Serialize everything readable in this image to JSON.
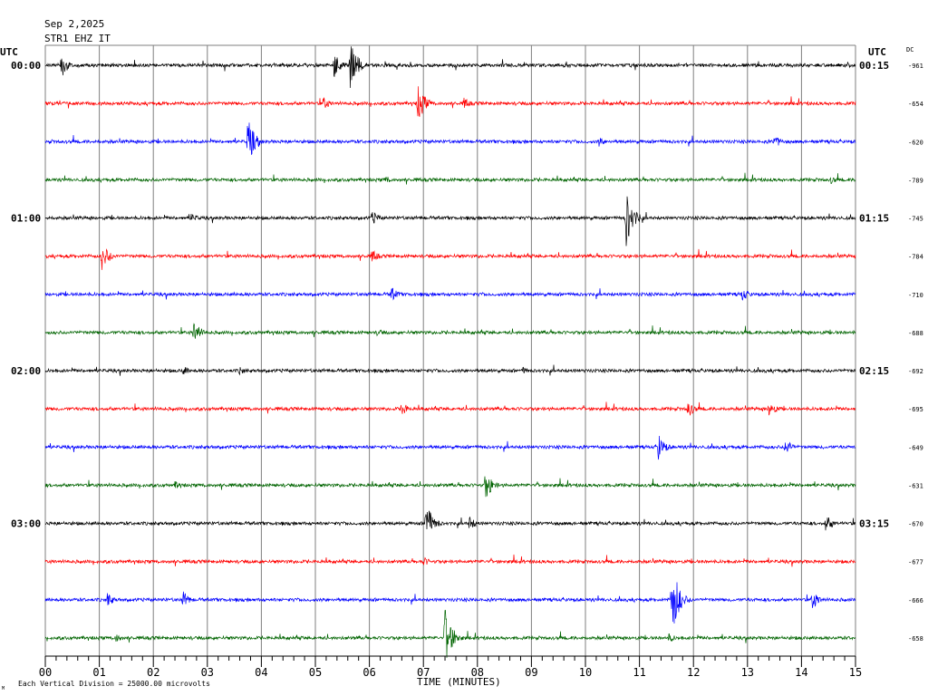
{
  "header": {
    "date": "Sep 2,2025",
    "station": "STR1 EHZ IT",
    "left_utc": "UTC",
    "right_utc": "UTC",
    "dc_label": "DC"
  },
  "footer": {
    "xlabel": "TIME (MINUTES)",
    "scale_note": "Each Vertical Division = 25000.00 microvolts",
    "corner_mark": "M"
  },
  "chart_data": {
    "type": "line",
    "title": "Sep 2,2025",
    "subtitle": "STR1 EHZ IT",
    "xlabel": "TIME (MINUTES)",
    "xlim": [
      0,
      15
    ],
    "x_ticks": [
      "00",
      "01",
      "02",
      "03",
      "04",
      "05",
      "06",
      "07",
      "08",
      "09",
      "10",
      "11",
      "12",
      "13",
      "14",
      "15"
    ],
    "row_colors": [
      "#000000",
      "#ff0000",
      "#0000ff",
      "#006400"
    ],
    "grid": true,
    "rows": [
      {
        "left_label": "00:00",
        "right_label": "00:15",
        "dc": "-961",
        "events": [
          {
            "t": 0.3,
            "amp": 14
          },
          {
            "t": 5.35,
            "amp": 16
          },
          {
            "t": 5.65,
            "amp": 30
          }
        ]
      },
      {
        "left_label": "",
        "right_label": "",
        "dc": "-654",
        "events": [
          {
            "t": 5.15,
            "amp": 8
          },
          {
            "t": 6.9,
            "amp": 22
          },
          {
            "t": 7.75,
            "amp": 7
          }
        ]
      },
      {
        "left_label": "",
        "right_label": "",
        "dc": "-620",
        "events": [
          {
            "t": 3.75,
            "amp": 26
          },
          {
            "t": 10.25,
            "amp": 6
          },
          {
            "t": 13.5,
            "amp": 8
          }
        ]
      },
      {
        "left_label": "",
        "right_label": "",
        "dc": "-789",
        "events": [
          {
            "t": 6.3,
            "amp": 5
          },
          {
            "t": 14.55,
            "amp": 5
          }
        ]
      },
      {
        "left_label": "01:00",
        "right_label": "01:15",
        "dc": "-745",
        "events": [
          {
            "t": 2.7,
            "amp": 6
          },
          {
            "t": 6.05,
            "amp": 9
          },
          {
            "t": 10.75,
            "amp": 34
          }
        ]
      },
      {
        "left_label": "",
        "right_label": "",
        "dc": "-784",
        "events": [
          {
            "t": 1.05,
            "amp": 17
          },
          {
            "t": 6.05,
            "amp": 8
          }
        ]
      },
      {
        "left_label": "",
        "right_label": "",
        "dc": "-710",
        "events": [
          {
            "t": 6.4,
            "amp": 9
          },
          {
            "t": 12.9,
            "amp": 8
          }
        ]
      },
      {
        "left_label": "",
        "right_label": "",
        "dc": "-688",
        "events": [
          {
            "t": 2.75,
            "amp": 15
          },
          {
            "t": 6.15,
            "amp": 5
          }
        ]
      },
      {
        "left_label": "02:00",
        "right_label": "02:15",
        "dc": "-692",
        "events": [
          {
            "t": 2.55,
            "amp": 6
          },
          {
            "t": 3.6,
            "amp": 5
          },
          {
            "t": 8.85,
            "amp": 5
          }
        ]
      },
      {
        "left_label": "",
        "right_label": "",
        "dc": "-695",
        "events": [
          {
            "t": 6.6,
            "amp": 9
          },
          {
            "t": 11.9,
            "amp": 10
          },
          {
            "t": 13.4,
            "amp": 11
          }
        ]
      },
      {
        "left_label": "",
        "right_label": "",
        "dc": "-649",
        "events": [
          {
            "t": 11.35,
            "amp": 15
          },
          {
            "t": 13.7,
            "amp": 10
          }
        ]
      },
      {
        "left_label": "",
        "right_label": "",
        "dc": "-631",
        "events": [
          {
            "t": 8.15,
            "amp": 17
          },
          {
            "t": 2.4,
            "amp": 5
          }
        ]
      },
      {
        "left_label": "03:00",
        "right_label": "03:15",
        "dc": "-670",
        "events": [
          {
            "t": 7.05,
            "amp": 24
          },
          {
            "t": 7.85,
            "amp": 8
          },
          {
            "t": 14.45,
            "amp": 11
          }
        ]
      },
      {
        "left_label": "",
        "right_label": "",
        "dc": "-677",
        "events": [
          {
            "t": 7.0,
            "amp": 6
          }
        ]
      },
      {
        "left_label": "",
        "right_label": "",
        "dc": "-666",
        "events": [
          {
            "t": 1.15,
            "amp": 8
          },
          {
            "t": 2.55,
            "amp": 10
          },
          {
            "t": 11.6,
            "amp": 44
          },
          {
            "t": 14.2,
            "amp": 12
          }
        ]
      },
      {
        "left_label": "",
        "right_label": "",
        "dc": "-658",
        "events": [
          {
            "t": 1.3,
            "amp": 6
          },
          {
            "t": 7.4,
            "amp": 36
          },
          {
            "t": 11.55,
            "amp": 6
          }
        ]
      }
    ]
  }
}
